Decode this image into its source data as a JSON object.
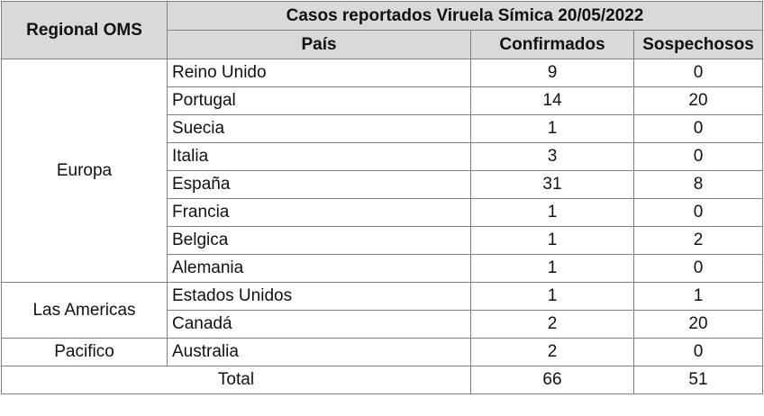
{
  "table": {
    "header": {
      "regional": "Regional OMS",
      "title": "Casos reportados Viruela Símica 20/05/2022",
      "pais": "País",
      "confirmados": "Confirmados",
      "sospechosos": "Sospechosos"
    },
    "regions": [
      "Europa",
      "Las Americas",
      "Pacifico"
    ],
    "rows": [
      {
        "pais": "Reino Unido",
        "confirmados": "9",
        "sospechosos": "0"
      },
      {
        "pais": "Portugal",
        "confirmados": "14",
        "sospechosos": "20"
      },
      {
        "pais": "Suecia",
        "confirmados": "1",
        "sospechosos": "0"
      },
      {
        "pais": "Italia",
        "confirmados": "3",
        "sospechosos": "0"
      },
      {
        "pais": "España",
        "confirmados": "31",
        "sospechosos": "8"
      },
      {
        "pais": "Francia",
        "confirmados": "1",
        "sospechosos": "0"
      },
      {
        "pais": "Belgica",
        "confirmados": "1",
        "sospechosos": "2"
      },
      {
        "pais": "Alemania",
        "confirmados": "1",
        "sospechosos": "0"
      },
      {
        "pais": "Estados Unidos",
        "confirmados": "1",
        "sospechosos": "1"
      },
      {
        "pais": "Canadá",
        "confirmados": "2",
        "sospechosos": "20"
      },
      {
        "pais": "Australia",
        "confirmados": "2",
        "sospechosos": "0"
      }
    ],
    "total": {
      "label": "Total",
      "confirmados": "66",
      "sospechosos": "51"
    }
  }
}
